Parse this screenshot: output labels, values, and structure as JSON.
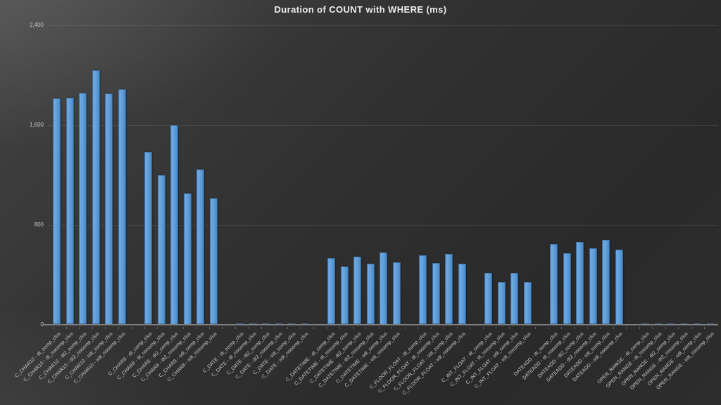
{
  "chart_data": {
    "type": "bar",
    "title": "Duration of COUNT with WHERE (ms)",
    "xlabel": "",
    "ylabel": "",
    "ylim": [
      0,
      2400
    ],
    "ytick_values": [
      0,
      800,
      1600,
      2400
    ],
    "ytick_labels": [
      "0",
      "800",
      "1,600",
      "2,400"
    ],
    "grid": true,
    "legend": false,
    "bar_color": "#5b9bd5",
    "background_color": "#303030",
    "groups": [
      {
        "name": "C_CHAR10",
        "categories": [
          "C_CHAR10 - dt_comp_clus",
          "C_CHAR10 - dt_nocomp_clus",
          "C_CHAR10 - dt2_comp_clus",
          "C_CHAR10 - dt2_nocomp_clus",
          "C_CHAR10 - sdt_comp_clus",
          "C_CHAR10 - sdt_nocomp_clus"
        ],
        "values": [
          1810,
          1815,
          1855,
          2035,
          1850,
          1885
        ]
      },
      {
        "name": "C_CHAR8",
        "categories": [
          "C_CHAR8 - dt_comp_clus",
          "C_CHAR8 - dt_nocomp_clus",
          "C_CHAR8 - dt2_comp_clus",
          "C_CHAR8 - dt2_nocomp_clus",
          "C_CHAR8 - sdt_comp_clus",
          "C_CHAR8 - sdt_nocomp_clus"
        ],
        "values": [
          1385,
          1195,
          1600,
          1050,
          1240,
          1010
        ]
      },
      {
        "name": "C_DATE",
        "categories": [
          "C_DATE - dt_comp_clus",
          "C_DATE - dt_nocomp_clus",
          "C_DATE - dt2_comp_clus",
          "C_DATE - dt2_nocomp_clus",
          "C_DATE - sdt_comp_clus",
          "C_DATE - sdt_nocomp_clus"
        ],
        "values": [
          10,
          10,
          10,
          10,
          10,
          10
        ]
      },
      {
        "name": "C_DATETIME",
        "categories": [
          "C_DATETIME - dt_comp_clus",
          "C_DATETIME - dt_nocomp_clus",
          "C_DATETIME - dt2_comp_clus",
          "C_DATETIME - dt2_nocomp_clus",
          "C_DATETIME - sdt_comp_clus",
          "C_DATETIME - sdt_nocomp_clus"
        ],
        "values": [
          535,
          465,
          545,
          490,
          575,
          500
        ]
      },
      {
        "name": "C_FLOOR_FLOAT",
        "categories": [
          "C_FLOOR_FLOAT - dt_comp_clus",
          "C_FLOOR_FLOAT - dt_nocomp_clus",
          "C_FLOOR_FLOAT - sdt_comp_clus",
          "C_FLOOR_FLOAT - sdt_nocomp_clus"
        ],
        "values": [
          555,
          495,
          565,
          490
        ]
      },
      {
        "name": "C_INT_FLOAT",
        "categories": [
          "C_INT_FLOAT - dt_comp_clus",
          "C_INT_FLOAT - dt_nocomp_clus",
          "C_INT_FLOAT - sdt_comp_clus",
          "C_INT_FLOAT - sdt_nocomp_clus"
        ],
        "values": [
          415,
          340,
          415,
          340
        ]
      },
      {
        "name": "DATEADD",
        "categories": [
          "DATEADD - dt_comp_clus",
          "DATEADD - dt_nocomp_clus",
          "DATEADD - dt2_comp_clus",
          "DATEADD - dt2_nocomp_clus",
          "DATEADD - sdt_comp_clus",
          "DATEADD - sdt_nocomp_clus"
        ],
        "values": [
          645,
          570,
          660,
          610,
          680,
          600
        ]
      },
      {
        "name": "OPEN_RANGE",
        "categories": [
          "OPEN_RANGE - dt_comp_clus",
          "OPEN_RANGE - dt_nocomp_clus",
          "OPEN_RANGE - dt2_comp_clus",
          "OPEN_RANGE - dt2_nocomp_clus",
          "OPEN_RANGE - sdt_comp_clus",
          "OPEN_RANGE - sdt_nocomp_clus"
        ],
        "values": [
          10,
          10,
          10,
          10,
          10,
          10
        ]
      }
    ]
  }
}
